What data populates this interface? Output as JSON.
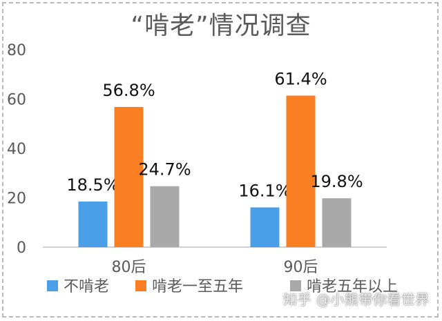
{
  "chart_data": {
    "type": "bar",
    "title": "“啃老”情况调查",
    "categories": [
      "80后",
      "90后"
    ],
    "series": [
      {
        "name": "不啃老",
        "values": [
          18.5,
          16.1
        ],
        "color": "#4a9fe6"
      },
      {
        "name": "啃老一至五年",
        "values": [
          56.8,
          61.4
        ],
        "color": "#f97f22"
      },
      {
        "name": "啃老五年以上",
        "values": [
          24.7,
          19.8
        ],
        "color": "#a9a9a9"
      }
    ],
    "data_labels": [
      [
        "18.5%",
        "16.1%"
      ],
      [
        "56.8%",
        "61.4%"
      ],
      [
        "24.7%",
        "19.8%"
      ]
    ],
    "ylim": [
      0,
      80
    ],
    "yticks": [
      0,
      20,
      40,
      60,
      80
    ],
    "xlabel": "",
    "ylabel": "",
    "grid": false,
    "legend_position": "bottom"
  },
  "watermark": "知乎 @小熊带你看世界"
}
